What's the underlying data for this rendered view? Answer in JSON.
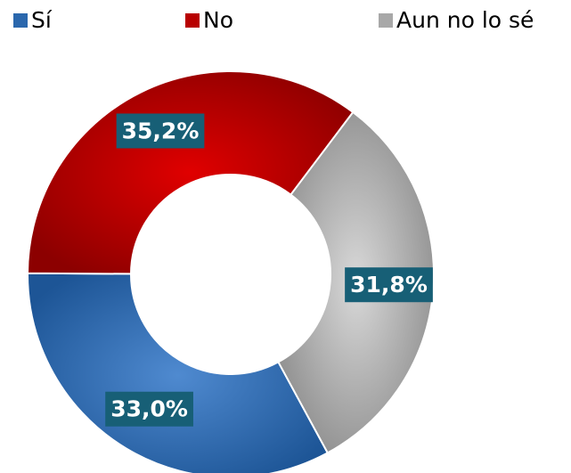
{
  "chart_data": {
    "type": "donut",
    "categories": [
      "Sí",
      "No",
      "Aun no lo sé"
    ],
    "values": [
      33.0,
      35.2,
      31.8
    ],
    "value_labels": [
      "33,0%",
      "35,2%",
      "31,8%"
    ],
    "colors": [
      "#2a67ad",
      "#b80000",
      "#a8a8a8"
    ],
    "legend": "top"
  }
}
